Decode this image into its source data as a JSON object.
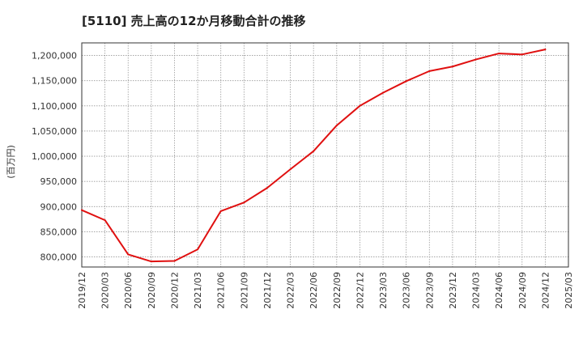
{
  "chart_data": {
    "type": "line",
    "title": "[5110]  売上高の12か月移動合計の推移",
    "xlabel": "",
    "ylabel": "(百万円)",
    "ylim": [
      780000,
      1225000
    ],
    "yticks": [
      800000,
      850000,
      900000,
      950000,
      1000000,
      1050000,
      1100000,
      1150000,
      1200000
    ],
    "ytick_labels": [
      "800,000",
      "850,000",
      "900,000",
      "950,000",
      "1,000,000",
      "1,050,000",
      "1,100,000",
      "1,150,000",
      "1,200,000"
    ],
    "x_ticks": [
      "2019/12",
      "2020/03",
      "2020/06",
      "2020/09",
      "2020/12",
      "2021/03",
      "2021/06",
      "2021/09",
      "2021/12",
      "2022/03",
      "2022/06",
      "2022/09",
      "2022/12",
      "2023/03",
      "2023/06",
      "2023/09",
      "2023/12",
      "2024/03",
      "2024/06",
      "2024/09",
      "2024/12",
      "2025/03"
    ],
    "grid": true,
    "series": [
      {
        "name": "売上高の12か月移動合計",
        "color": "#e01010",
        "x": [
          "2019/12",
          "2020/03",
          "2020/06",
          "2020/09",
          "2020/12",
          "2021/03",
          "2021/06",
          "2021/09",
          "2021/12",
          "2022/03",
          "2022/06",
          "2022/09",
          "2022/12",
          "2023/03",
          "2023/06",
          "2023/09",
          "2023/12",
          "2024/03",
          "2024/06",
          "2024/09",
          "2024/12"
        ],
        "values": [
          893000,
          873000,
          805000,
          791000,
          792000,
          815000,
          891000,
          908000,
          937000,
          974000,
          1010000,
          1061000,
          1100000,
          1126000,
          1149000,
          1169000,
          1178000,
          1192000,
          1204000,
          1202000,
          1212000
        ]
      }
    ]
  }
}
